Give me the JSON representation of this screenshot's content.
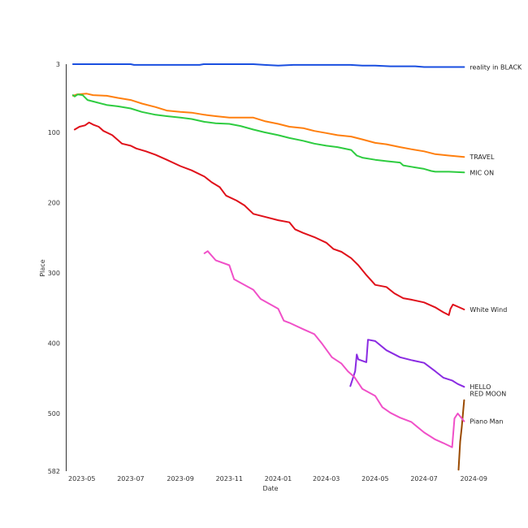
{
  "chart_data": {
    "type": "line",
    "xlabel": "Date",
    "ylabel": "Place",
    "xlim": [
      "2023-04-12",
      "2024-09-18"
    ],
    "ylim": [
      582,
      3
    ],
    "y_ticks": [
      3,
      100,
      200,
      300,
      400,
      500,
      582
    ],
    "x_ticks": [
      "2023-05",
      "2023-07",
      "2023-09",
      "2023-11",
      "2024-01",
      "2024-03",
      "2024-05",
      "2024-07",
      "2024-09"
    ],
    "grid": false,
    "legend": "direct labels at line ends",
    "series": [
      {
        "name": "reality in BLACK",
        "color": "#1a4fe0",
        "points": [
          [
            "2023-04-20",
            3
          ],
          [
            "2023-07-01",
            3
          ],
          [
            "2023-07-05",
            4
          ],
          [
            "2023-09-25",
            4
          ],
          [
            "2023-09-30",
            3
          ],
          [
            "2023-12-01",
            3
          ],
          [
            "2023-12-15",
            4
          ],
          [
            "2024-01-01",
            5
          ],
          [
            "2024-01-20",
            4
          ],
          [
            "2024-03-31",
            4
          ],
          [
            "2024-04-15",
            5
          ],
          [
            "2024-05-01",
            5
          ],
          [
            "2024-05-20",
            6
          ],
          [
            "2024-06-20",
            6
          ],
          [
            "2024-07-01",
            7
          ],
          [
            "2024-08-20",
            7
          ]
        ]
      },
      {
        "name": "TRAVEL",
        "color": "#ff7f0e",
        "points": [
          [
            "2023-04-20",
            48
          ],
          [
            "2023-04-25",
            46
          ],
          [
            "2023-05-07",
            45
          ],
          [
            "2023-05-15",
            47
          ],
          [
            "2023-06-01",
            48
          ],
          [
            "2023-06-15",
            51
          ],
          [
            "2023-07-01",
            54
          ],
          [
            "2023-07-15",
            59
          ],
          [
            "2023-08-01",
            64
          ],
          [
            "2023-08-15",
            69
          ],
          [
            "2023-09-01",
            71
          ],
          [
            "2023-09-15",
            72
          ],
          [
            "2023-10-01",
            75
          ],
          [
            "2023-10-15",
            77
          ],
          [
            "2023-11-01",
            79
          ],
          [
            "2023-12-01",
            79
          ],
          [
            "2023-12-15",
            84
          ],
          [
            "2024-01-01",
            88
          ],
          [
            "2024-01-15",
            92
          ],
          [
            "2024-02-01",
            94
          ],
          [
            "2024-02-15",
            98
          ],
          [
            "2024-03-01",
            101
          ],
          [
            "2024-03-15",
            104
          ],
          [
            "2024-04-01",
            106
          ],
          [
            "2024-04-15",
            110
          ],
          [
            "2024-05-01",
            115
          ],
          [
            "2024-05-15",
            117
          ],
          [
            "2024-06-01",
            121
          ],
          [
            "2024-06-15",
            124
          ],
          [
            "2024-07-01",
            127
          ],
          [
            "2024-07-15",
            131
          ],
          [
            "2024-08-01",
            133
          ],
          [
            "2024-08-20",
            135
          ]
        ]
      },
      {
        "name": "MIC ON",
        "color": "#2ecc40",
        "points": [
          [
            "2023-04-20",
            47
          ],
          [
            "2023-04-22",
            49
          ],
          [
            "2023-04-26",
            46
          ],
          [
            "2023-05-02",
            47
          ],
          [
            "2023-05-08",
            54
          ],
          [
            "2023-05-15",
            56
          ],
          [
            "2023-06-01",
            61
          ],
          [
            "2023-06-15",
            63
          ],
          [
            "2023-07-01",
            66
          ],
          [
            "2023-07-15",
            71
          ],
          [
            "2023-08-01",
            75
          ],
          [
            "2023-08-15",
            77
          ],
          [
            "2023-09-01",
            79
          ],
          [
            "2023-09-15",
            81
          ],
          [
            "2023-10-01",
            85
          ],
          [
            "2023-10-15",
            87
          ],
          [
            "2023-11-01",
            88
          ],
          [
            "2023-11-15",
            91
          ],
          [
            "2023-12-01",
            96
          ],
          [
            "2023-12-15",
            100
          ],
          [
            "2024-01-01",
            104
          ],
          [
            "2024-01-15",
            108
          ],
          [
            "2024-02-01",
            112
          ],
          [
            "2024-02-15",
            116
          ],
          [
            "2024-03-01",
            119
          ],
          [
            "2024-03-15",
            121
          ],
          [
            "2024-04-01",
            125
          ],
          [
            "2024-04-08",
            133
          ],
          [
            "2024-04-15",
            136
          ],
          [
            "2024-05-01",
            139
          ],
          [
            "2024-05-15",
            141
          ],
          [
            "2024-06-01",
            143
          ],
          [
            "2024-06-05",
            147
          ],
          [
            "2024-06-15",
            149
          ],
          [
            "2024-07-01",
            152
          ],
          [
            "2024-07-10",
            155
          ],
          [
            "2024-07-15",
            156
          ],
          [
            "2024-08-01",
            156
          ],
          [
            "2024-08-20",
            157
          ]
        ]
      },
      {
        "name": "White Wind",
        "color": "#e0101a",
        "points": [
          [
            "2023-04-22",
            96
          ],
          [
            "2023-04-28",
            92
          ],
          [
            "2023-05-05",
            90
          ],
          [
            "2023-05-10",
            86
          ],
          [
            "2023-05-15",
            89
          ],
          [
            "2023-05-22",
            92
          ],
          [
            "2023-05-28",
            98
          ],
          [
            "2023-06-08",
            104
          ],
          [
            "2023-06-20",
            116
          ],
          [
            "2023-07-01",
            119
          ],
          [
            "2023-07-08",
            123
          ],
          [
            "2023-07-20",
            127
          ],
          [
            "2023-08-01",
            132
          ],
          [
            "2023-08-15",
            139
          ],
          [
            "2023-09-01",
            148
          ],
          [
            "2023-09-15",
            154
          ],
          [
            "2023-10-01",
            163
          ],
          [
            "2023-10-10",
            171
          ],
          [
            "2023-10-20",
            178
          ],
          [
            "2023-10-28",
            190
          ],
          [
            "2023-11-10",
            197
          ],
          [
            "2023-11-20",
            204
          ],
          [
            "2023-12-01",
            216
          ],
          [
            "2023-12-15",
            220
          ],
          [
            "2024-01-01",
            225
          ],
          [
            "2024-01-15",
            228
          ],
          [
            "2024-01-22",
            238
          ],
          [
            "2024-02-01",
            243
          ],
          [
            "2024-02-15",
            249
          ],
          [
            "2024-03-01",
            257
          ],
          [
            "2024-03-10",
            266
          ],
          [
            "2024-03-20",
            270
          ],
          [
            "2024-04-01",
            279
          ],
          [
            "2024-04-10",
            289
          ],
          [
            "2024-04-20",
            303
          ],
          [
            "2024-05-01",
            317
          ],
          [
            "2024-05-15",
            320
          ],
          [
            "2024-05-25",
            329
          ],
          [
            "2024-06-05",
            336
          ],
          [
            "2024-06-15",
            338
          ],
          [
            "2024-07-01",
            342
          ],
          [
            "2024-07-15",
            349
          ],
          [
            "2024-07-25",
            356
          ],
          [
            "2024-08-01",
            360
          ],
          [
            "2024-08-03",
            351
          ],
          [
            "2024-08-06",
            345
          ],
          [
            "2024-08-12",
            348
          ],
          [
            "2024-08-20",
            352
          ]
        ]
      },
      {
        "name": "HELLO",
        "color": "#8a2be2",
        "points": [
          [
            "2024-03-31",
            461
          ],
          [
            "2024-04-06",
            440
          ],
          [
            "2024-04-08",
            416
          ],
          [
            "2024-04-10",
            423
          ],
          [
            "2024-04-20",
            427
          ],
          [
            "2024-04-22",
            395
          ],
          [
            "2024-05-01",
            397
          ],
          [
            "2024-05-15",
            410
          ],
          [
            "2024-06-01",
            420
          ],
          [
            "2024-06-15",
            424
          ],
          [
            "2024-07-01",
            428
          ],
          [
            "2024-07-15",
            440
          ],
          [
            "2024-07-25",
            449
          ],
          [
            "2024-08-05",
            453
          ],
          [
            "2024-08-12",
            458
          ],
          [
            "2024-08-20",
            462
          ]
        ]
      },
      {
        "name": "RED MOON",
        "color": "#9a4a00",
        "points": [
          [
            "2024-08-13",
            580
          ],
          [
            "2024-08-15",
            540
          ],
          [
            "2024-08-17",
            520
          ],
          [
            "2024-08-20",
            481
          ]
        ]
      },
      {
        "name": "Piano Man",
        "color": "#f050c8",
        "points": [
          [
            "2023-10-01",
            272
          ],
          [
            "2023-10-05",
            269
          ],
          [
            "2023-10-15",
            282
          ],
          [
            "2023-11-01",
            289
          ],
          [
            "2023-11-07",
            309
          ],
          [
            "2023-11-15",
            314
          ],
          [
            "2023-12-01",
            324
          ],
          [
            "2023-12-10",
            337
          ],
          [
            "2024-01-01",
            351
          ],
          [
            "2024-01-08",
            368
          ],
          [
            "2024-01-15",
            371
          ],
          [
            "2024-02-01",
            380
          ],
          [
            "2024-02-15",
            387
          ],
          [
            "2024-02-25",
            401
          ],
          [
            "2024-03-08",
            420
          ],
          [
            "2024-03-20",
            429
          ],
          [
            "2024-03-28",
            440
          ],
          [
            "2024-04-05",
            448
          ],
          [
            "2024-04-15",
            465
          ],
          [
            "2024-05-01",
            475
          ],
          [
            "2024-05-10",
            491
          ],
          [
            "2024-05-20",
            499
          ],
          [
            "2024-06-01",
            506
          ],
          [
            "2024-06-15",
            512
          ],
          [
            "2024-07-01",
            527
          ],
          [
            "2024-07-15",
            537
          ],
          [
            "2024-07-25",
            542
          ],
          [
            "2024-08-05",
            548
          ],
          [
            "2024-08-08",
            507
          ],
          [
            "2024-08-12",
            500
          ],
          [
            "2024-08-20",
            511
          ]
        ]
      }
    ]
  }
}
